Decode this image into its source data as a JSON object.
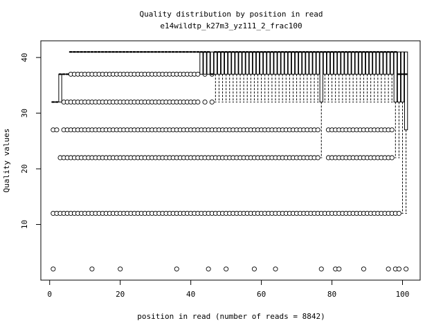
{
  "chart_data": {
    "type": "boxplot",
    "title": "Quality distribution by position in read",
    "subtitle": "e14wildtp_k27m3_yz111_2_frac100",
    "xlabel": "position in read (number of reads = 8842)",
    "ylabel": "Quality values",
    "xlim": [
      -2.5,
      105
    ],
    "ylim": [
      0,
      43
    ],
    "x_ticks": [
      0,
      20,
      40,
      60,
      80,
      100
    ],
    "y_ticks": [
      10,
      20,
      30,
      40
    ],
    "grid": false,
    "positions": [
      1,
      101
    ],
    "outlier_levels": [
      2,
      12,
      22,
      27,
      32,
      37
    ],
    "box_segments": [
      {
        "from": 1,
        "to": 2,
        "q1": 32,
        "median": 32,
        "q3": 32,
        "wlow": 32,
        "whigh": 32
      },
      {
        "from": 3,
        "to": 3,
        "q1": 32,
        "median": 37,
        "q3": 37,
        "wlow": 32,
        "whigh": 37
      },
      {
        "from": 4,
        "to": 5,
        "q1": 37,
        "median": 37,
        "q3": 37,
        "wlow": 37,
        "whigh": 37
      },
      {
        "from": 6,
        "to": 42,
        "q1": 41,
        "median": 41,
        "q3": 41,
        "wlow": 41,
        "whigh": 41
      },
      {
        "from": 43,
        "to": 45,
        "q1": 37,
        "median": 41,
        "q3": 41,
        "wlow": 37,
        "whigh": 41
      },
      {
        "from": 46,
        "to": 46,
        "q1": 37,
        "median": 37,
        "q3": 41,
        "wlow": 37,
        "whigh": 41
      },
      {
        "from": 47,
        "to": 76,
        "q1": 37,
        "median": 41,
        "q3": 41,
        "wlow": 32,
        "whigh": 41
      },
      {
        "from": 77,
        "to": 77,
        "q1": 32,
        "median": 41,
        "q3": 41,
        "wlow": 22,
        "whigh": 41
      },
      {
        "from": 78,
        "to": 96,
        "q1": 37,
        "median": 41,
        "q3": 41,
        "wlow": 32,
        "whigh": 41
      },
      {
        "from": 97,
        "to": 97,
        "q1": 37,
        "median": 41,
        "q3": 41,
        "wlow": 32,
        "whigh": 41
      },
      {
        "from": 98,
        "to": 98,
        "q1": 32,
        "median": 41,
        "q3": 41,
        "wlow": 22,
        "whigh": 41
      },
      {
        "from": 99,
        "to": 99,
        "q1": 32,
        "median": 37,
        "q3": 41,
        "wlow": 22,
        "whigh": 41
      },
      {
        "from": 100,
        "to": 100,
        "q1": 32,
        "median": 37,
        "q3": 41,
        "wlow": 12,
        "whigh": 41
      },
      {
        "from": 101,
        "to": 101,
        "q1": 27,
        "median": 37,
        "q3": 41,
        "wlow": 12,
        "whigh": 41
      }
    ],
    "outlier_ranges": [
      {
        "y": 37,
        "from": 6,
        "to": 42
      },
      {
        "y": 37,
        "from": 44,
        "to": 44
      },
      {
        "y": 37,
        "from": 46,
        "to": 46
      },
      {
        "y": 32,
        "from": 4,
        "to": 42
      },
      {
        "y": 32,
        "from": 44,
        "to": 44
      },
      {
        "y": 32,
        "from": 46,
        "to": 46
      },
      {
        "y": 27,
        "from": 1,
        "to": 2
      },
      {
        "y": 27,
        "from": 4,
        "to": 76
      },
      {
        "y": 27,
        "from": 79,
        "to": 97
      },
      {
        "y": 22,
        "from": 3,
        "to": 76
      },
      {
        "y": 22,
        "from": 79,
        "to": 97
      },
      {
        "y": 12,
        "from": 1,
        "to": 99
      }
    ],
    "outliers_sparse": [
      {
        "y": 2,
        "x": [
          1,
          12,
          20,
          36,
          45,
          50,
          58,
          64,
          77,
          81,
          82,
          89,
          96,
          98,
          99,
          101
        ]
      }
    ]
  }
}
